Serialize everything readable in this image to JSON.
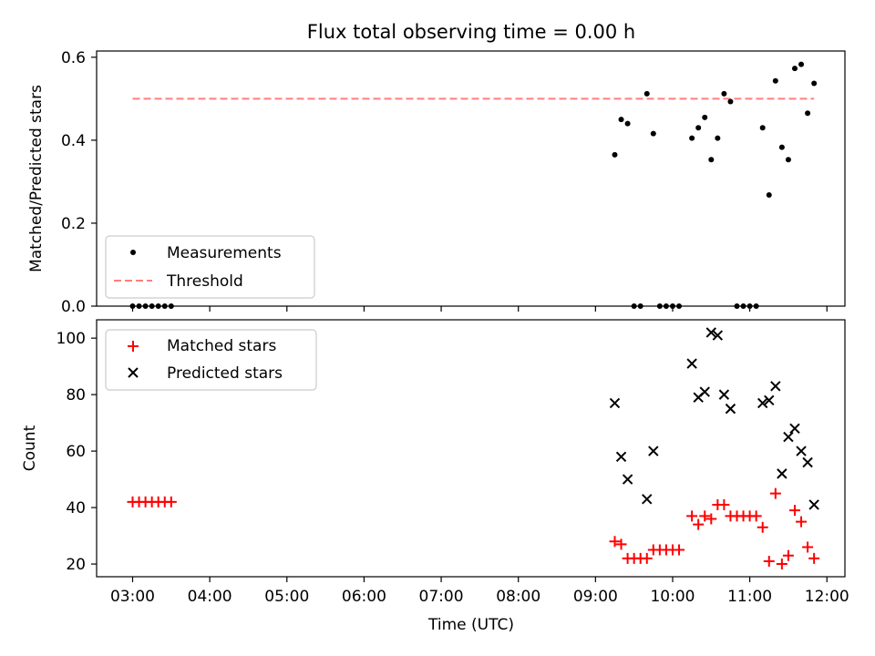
{
  "figure": {
    "title": "Flux total observing time = 0.00 h",
    "xlabel": "Time (UTC)",
    "xticks": [
      "03:00",
      "04:00",
      "05:00",
      "06:00",
      "07:00",
      "08:00",
      "09:00",
      "10:00",
      "11:00",
      "12:00"
    ],
    "colors": {
      "measurement": "#000000",
      "threshold": "#ff7f7f",
      "matched": "#ff0000",
      "predicted": "#000000"
    }
  },
  "chart_data": [
    {
      "type": "scatter",
      "ylabel": "Matched/Predicted stars",
      "xlim": [
        "02:32",
        "12:14"
      ],
      "ylim": [
        0,
        0.615
      ],
      "yticks": [
        "0.0",
        "0.2",
        "0.4",
        "0.6"
      ],
      "legend_position": "lower-left",
      "threshold": {
        "name": "Threshold",
        "value": 0.5,
        "x_range": [
          "03:00",
          "11:50"
        ]
      },
      "series": [
        {
          "name": "Measurements",
          "points": [
            [
              "03:00",
              0
            ],
            [
              "03:05",
              0
            ],
            [
              "03:10",
              0
            ],
            [
              "03:15",
              0
            ],
            [
              "03:20",
              0
            ],
            [
              "03:25",
              0
            ],
            [
              "03:30",
              0
            ],
            [
              "09:15",
              0.365
            ],
            [
              "09:20",
              0.45
            ],
            [
              "09:25",
              0.44
            ],
            [
              "09:30",
              0
            ],
            [
              "09:35",
              0
            ],
            [
              "09:40",
              0.512
            ],
            [
              "09:45",
              0.416
            ],
            [
              "09:50",
              0
            ],
            [
              "09:55",
              0
            ],
            [
              "10:00",
              0
            ],
            [
              "10:05",
              0
            ],
            [
              "10:15",
              0.405
            ],
            [
              "10:20",
              0.43
            ],
            [
              "10:25",
              0.455
            ],
            [
              "10:30",
              0.353
            ],
            [
              "10:35",
              0.405
            ],
            [
              "10:40",
              0.512
            ],
            [
              "10:45",
              0.493
            ],
            [
              "10:50",
              0
            ],
            [
              "10:55",
              0
            ],
            [
              "11:00",
              0
            ],
            [
              "11:05",
              0
            ],
            [
              "11:10",
              0.43
            ],
            [
              "11:15",
              0.268
            ],
            [
              "11:20",
              0.543
            ],
            [
              "11:25",
              0.383
            ],
            [
              "11:30",
              0.353
            ],
            [
              "11:35",
              0.573
            ],
            [
              "11:40",
              0.583
            ],
            [
              "11:45",
              0.465
            ],
            [
              "11:50",
              0.537
            ]
          ]
        }
      ]
    },
    {
      "type": "scatter",
      "ylabel": "Count",
      "xlim": [
        "02:32",
        "12:14"
      ],
      "ylim": [
        15.5,
        106.5
      ],
      "yticks": [
        "20",
        "40",
        "60",
        "80",
        "100"
      ],
      "legend_position": "upper-left",
      "series": [
        {
          "name": "Matched stars",
          "marker": "plus",
          "points": [
            [
              "03:00",
              42
            ],
            [
              "03:05",
              42
            ],
            [
              "03:10",
              42
            ],
            [
              "03:15",
              42
            ],
            [
              "03:20",
              42
            ],
            [
              "03:25",
              42
            ],
            [
              "03:30",
              42
            ],
            [
              "09:15",
              28
            ],
            [
              "09:20",
              27
            ],
            [
              "09:25",
              22
            ],
            [
              "09:30",
              22
            ],
            [
              "09:35",
              22
            ],
            [
              "09:40",
              22
            ],
            [
              "09:45",
              25
            ],
            [
              "09:50",
              25
            ],
            [
              "09:55",
              25
            ],
            [
              "10:00",
              25
            ],
            [
              "10:05",
              25
            ],
            [
              "10:15",
              37
            ],
            [
              "10:20",
              34
            ],
            [
              "10:25",
              37
            ],
            [
              "10:30",
              36
            ],
            [
              "10:35",
              41
            ],
            [
              "10:40",
              41
            ],
            [
              "10:45",
              37
            ],
            [
              "10:50",
              37
            ],
            [
              "10:55",
              37
            ],
            [
              "11:00",
              37
            ],
            [
              "11:05",
              37
            ],
            [
              "11:10",
              33
            ],
            [
              "11:15",
              21
            ],
            [
              "11:20",
              45
            ],
            [
              "11:25",
              20
            ],
            [
              "11:30",
              23
            ],
            [
              "11:35",
              39
            ],
            [
              "11:40",
              35
            ],
            [
              "11:45",
              26
            ],
            [
              "11:50",
              22
            ]
          ]
        },
        {
          "name": "Predicted stars",
          "marker": "x",
          "points": [
            [
              "09:15",
              77
            ],
            [
              "09:20",
              58
            ],
            [
              "09:25",
              50
            ],
            [
              "09:40",
              43
            ],
            [
              "09:45",
              60
            ],
            [
              "10:15",
              91
            ],
            [
              "10:20",
              79
            ],
            [
              "10:25",
              81
            ],
            [
              "10:30",
              102
            ],
            [
              "10:35",
              101
            ],
            [
              "10:40",
              80
            ],
            [
              "10:45",
              75
            ],
            [
              "11:10",
              77
            ],
            [
              "11:15",
              78
            ],
            [
              "11:20",
              83
            ],
            [
              "11:25",
              52
            ],
            [
              "11:30",
              65
            ],
            [
              "11:35",
              68
            ],
            [
              "11:40",
              60
            ],
            [
              "11:45",
              56
            ],
            [
              "11:50",
              41
            ]
          ]
        }
      ]
    }
  ]
}
